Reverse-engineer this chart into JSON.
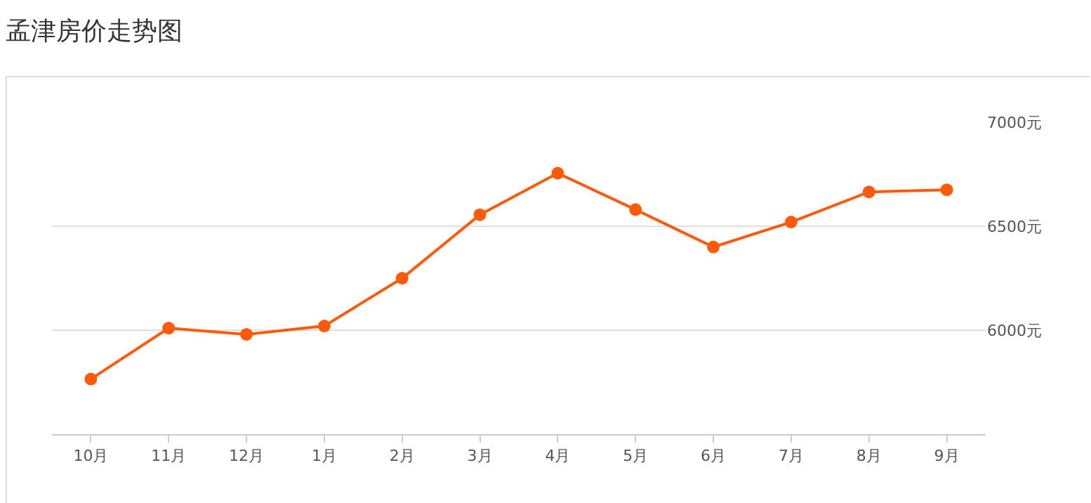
{
  "chart_data": {
    "type": "line",
    "title": "孟津房价走势图",
    "categories": [
      "10月",
      "11月",
      "12月",
      "1月",
      "2月",
      "3月",
      "4月",
      "5月",
      "6月",
      "7月",
      "8月",
      "9月"
    ],
    "series": [
      {
        "color": "#ff5a0a",
        "values": [
          5765,
          6010,
          5980,
          6020,
          6250,
          6555,
          6755,
          6580,
          6400,
          6520,
          6665,
          6675
        ]
      }
    ],
    "ylim": [
      5500,
      7000
    ],
    "yticks": [
      {
        "value": 6000,
        "label": "6000元"
      },
      {
        "value": 6500,
        "label": "6500元"
      },
      {
        "value": 7000,
        "label": "7000元"
      }
    ],
    "grid": "y",
    "legend": false,
    "marker": "circle",
    "line_style": "solid"
  }
}
